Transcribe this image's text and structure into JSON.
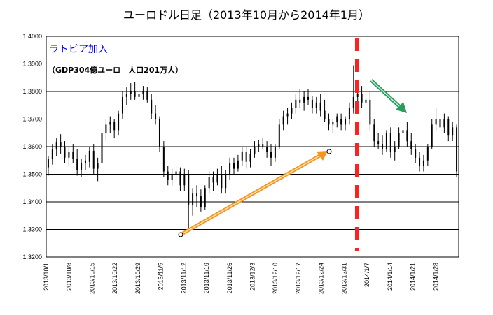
{
  "chart_data": {
    "type": "candlestick",
    "title": "ユーロドル日足（2013年10月から2014年1月）",
    "ylim": [
      1.32,
      1.4
    ],
    "yticks": [
      "1.4000",
      "1.3900",
      "1.3800",
      "1.3700",
      "1.3600",
      "1.3500",
      "1.3400",
      "1.3300",
      "1.3200"
    ],
    "ytick_values": [
      1.4,
      1.39,
      1.38,
      1.37,
      1.36,
      1.35,
      1.34,
      1.33,
      1.32
    ],
    "xticks": [
      "2013/10/1",
      "2013/10/8",
      "2013/10/15",
      "2013/10/22",
      "2013/10/29",
      "2013/11/5",
      "2013/11/12",
      "2013/11/19",
      "2013/11/26",
      "2013/12/3",
      "2013/12/10",
      "2013/12/17",
      "2013/12/24",
      "2013/12/31",
      "2014/1/7",
      "2014/1/14",
      "2014/1/21",
      "2014/1/28"
    ],
    "grid": true,
    "annotations": {
      "main": "ラトビア加入",
      "sub": "（GDP304億ユーロ　人口201万人）"
    },
    "colors": {
      "candle": "#000000",
      "marker": "#ff2020",
      "up_arrow": "#f7941d",
      "down_arrow": "#2e9b5e"
    },
    "candles": [
      [
        1.3525,
        1.3565,
        1.3495,
        1.3555
      ],
      [
        1.3555,
        1.361,
        1.3535,
        1.359
      ],
      [
        1.359,
        1.363,
        1.3565,
        1.3615
      ],
      [
        1.3615,
        1.3645,
        1.3575,
        1.36
      ],
      [
        1.36,
        1.362,
        1.354,
        1.356
      ],
      [
        1.356,
        1.36,
        1.353,
        1.358
      ],
      [
        1.358,
        1.361,
        1.354,
        1.3555
      ],
      [
        1.3555,
        1.359,
        1.3495,
        1.3515
      ],
      [
        1.3515,
        1.3555,
        1.349,
        1.354
      ],
      [
        1.354,
        1.357,
        1.3515,
        1.355
      ],
      [
        1.3545,
        1.36,
        1.3525,
        1.3585
      ],
      [
        1.3585,
        1.361,
        1.35,
        1.352
      ],
      [
        1.352,
        1.356,
        1.3475,
        1.354
      ],
      [
        1.354,
        1.366,
        1.353,
        1.365
      ],
      [
        1.365,
        1.37,
        1.362,
        1.368
      ],
      [
        1.368,
        1.371,
        1.365,
        1.369
      ],
      [
        1.369,
        1.37,
        1.363,
        1.366
      ],
      [
        1.366,
        1.373,
        1.364,
        1.372
      ],
      [
        1.372,
        1.38,
        1.37,
        1.378
      ],
      [
        1.378,
        1.3815,
        1.375,
        1.379
      ],
      [
        1.379,
        1.383,
        1.377,
        1.38
      ],
      [
        1.38,
        1.3835,
        1.377,
        1.378
      ],
      [
        1.378,
        1.381,
        1.375,
        1.379
      ],
      [
        1.379,
        1.382,
        1.377,
        1.38
      ],
      [
        1.38,
        1.3815,
        1.376,
        1.377
      ],
      [
        1.377,
        1.379,
        1.37,
        1.372
      ],
      [
        1.372,
        1.375,
        1.368,
        1.37
      ],
      [
        1.37,
        1.371,
        1.358,
        1.36
      ],
      [
        1.36,
        1.362,
        1.349,
        1.351
      ],
      [
        1.351,
        1.353,
        1.346,
        1.348
      ],
      [
        1.348,
        1.352,
        1.346,
        1.35
      ],
      [
        1.35,
        1.353,
        1.348,
        1.351
      ],
      [
        1.351,
        1.3525,
        1.344,
        1.346
      ],
      [
        1.346,
        1.352,
        1.344,
        1.35
      ],
      [
        1.35,
        1.3515,
        1.33,
        1.339
      ],
      [
        1.339,
        1.345,
        1.335,
        1.343
      ],
      [
        1.343,
        1.346,
        1.338,
        1.342
      ],
      [
        1.342,
        1.3445,
        1.3365,
        1.338
      ],
      [
        1.338,
        1.346,
        1.337,
        1.345
      ],
      [
        1.345,
        1.351,
        1.343,
        1.349
      ],
      [
        1.349,
        1.351,
        1.344,
        1.347
      ],
      [
        1.347,
        1.352,
        1.346,
        1.35
      ],
      [
        1.35,
        1.353,
        1.343,
        1.345
      ],
      [
        1.345,
        1.3515,
        1.343,
        1.35
      ],
      [
        1.35,
        1.356,
        1.348,
        1.354
      ],
      [
        1.354,
        1.356,
        1.35,
        1.352
      ],
      [
        1.352,
        1.357,
        1.351,
        1.355
      ],
      [
        1.355,
        1.36,
        1.353,
        1.358
      ],
      [
        1.358,
        1.36,
        1.352,
        1.3545
      ],
      [
        1.3545,
        1.359,
        1.3525,
        1.3575
      ],
      [
        1.3575,
        1.362,
        1.356,
        1.36
      ],
      [
        1.36,
        1.3625,
        1.358,
        1.361
      ],
      [
        1.361,
        1.363,
        1.359,
        1.36
      ],
      [
        1.36,
        1.362,
        1.356,
        1.358
      ],
      [
        1.358,
        1.361,
        1.353,
        1.356
      ],
      [
        1.356,
        1.361,
        1.3545,
        1.36
      ],
      [
        1.36,
        1.37,
        1.359,
        1.368
      ],
      [
        1.368,
        1.373,
        1.366,
        1.371
      ],
      [
        1.371,
        1.374,
        1.368,
        1.372
      ],
      [
        1.372,
        1.376,
        1.37,
        1.374
      ],
      [
        1.374,
        1.379,
        1.372,
        1.377
      ],
      [
        1.377,
        1.381,
        1.374,
        1.376
      ],
      [
        1.376,
        1.38,
        1.373,
        1.378
      ],
      [
        1.378,
        1.381,
        1.375,
        1.377
      ],
      [
        1.377,
        1.3785,
        1.372,
        1.374
      ],
      [
        1.374,
        1.378,
        1.372,
        1.376
      ],
      [
        1.376,
        1.379,
        1.371,
        1.373
      ],
      [
        1.373,
        1.377,
        1.369,
        1.37
      ],
      [
        1.37,
        1.372,
        1.366,
        1.368
      ],
      [
        1.368,
        1.37,
        1.365,
        1.369
      ],
      [
        1.369,
        1.372,
        1.367,
        1.371
      ],
      [
        1.37,
        1.372,
        1.366,
        1.368
      ],
      [
        1.368,
        1.371,
        1.366,
        1.37
      ],
      [
        1.37,
        1.376,
        1.368,
        1.374
      ],
      [
        1.374,
        1.3895,
        1.372,
        1.378
      ],
      [
        1.378,
        1.381,
        1.375,
        1.379
      ],
      [
        1.379,
        1.382,
        1.374,
        1.376
      ],
      [
        1.376,
        1.379,
        1.372,
        1.377
      ],
      [
        1.377,
        1.38,
        1.366,
        1.368
      ],
      [
        1.368,
        1.37,
        1.36,
        1.362
      ],
      [
        1.362,
        1.365,
        1.359,
        1.361
      ],
      [
        1.361,
        1.364,
        1.357,
        1.359
      ],
      [
        1.359,
        1.366,
        1.358,
        1.365
      ],
      [
        1.365,
        1.367,
        1.356,
        1.358
      ],
      [
        1.358,
        1.362,
        1.355,
        1.36
      ],
      [
        1.36,
        1.367,
        1.359,
        1.365
      ],
      [
        1.365,
        1.368,
        1.362,
        1.366
      ],
      [
        1.366,
        1.369,
        1.36,
        1.362
      ],
      [
        1.362,
        1.365,
        1.357,
        1.359
      ],
      [
        1.359,
        1.361,
        1.354,
        1.356
      ],
      [
        1.356,
        1.358,
        1.351,
        1.353
      ],
      [
        1.353,
        1.357,
        1.351,
        1.355
      ],
      [
        1.355,
        1.361,
        1.353,
        1.36
      ],
      [
        1.36,
        1.37,
        1.359,
        1.368
      ],
      [
        1.368,
        1.374,
        1.366,
        1.37
      ],
      [
        1.37,
        1.372,
        1.365,
        1.367
      ],
      [
        1.367,
        1.372,
        1.365,
        1.37
      ],
      [
        1.37,
        1.371,
        1.362,
        1.364
      ],
      [
        1.364,
        1.369,
        1.362,
        1.367
      ],
      [
        1.367,
        1.368,
        1.349,
        1.351
      ]
    ]
  }
}
